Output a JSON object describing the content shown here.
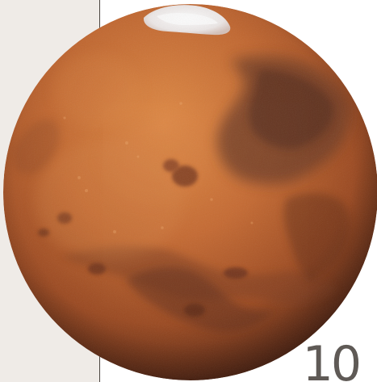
{
  "page": {
    "number": "10"
  },
  "image": {
    "subject_icon": "mars-planet-icon"
  },
  "colors": {
    "panel": "#efebe7",
    "panel_border": "#4a4540",
    "planet_base": "#c76a32",
    "planet_shadow": "#5a2c17",
    "polar_cap": "#f4f1ef",
    "page_number": "#5f5a56"
  }
}
